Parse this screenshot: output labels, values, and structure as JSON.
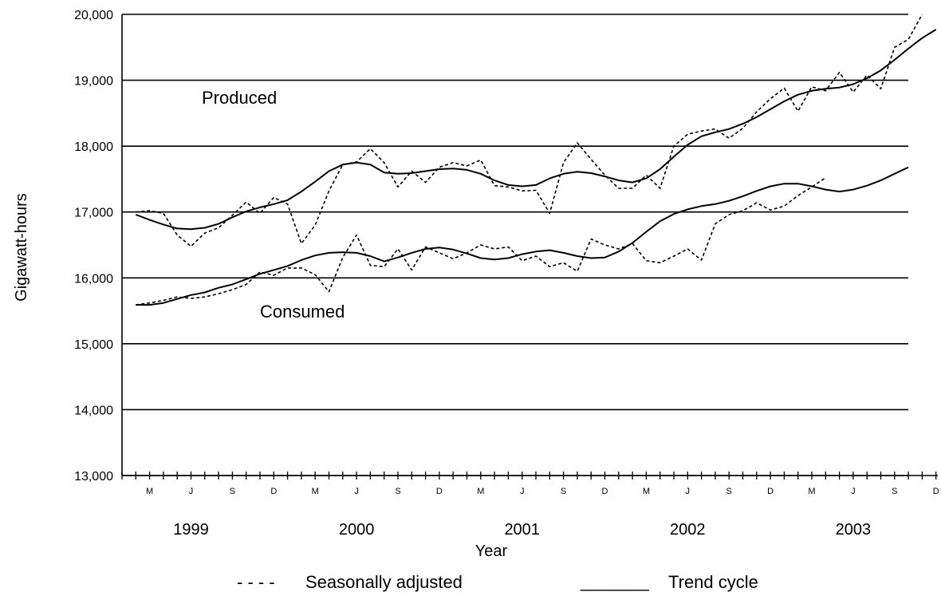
{
  "chart_data": {
    "type": "line",
    "xlabel": "Year",
    "ylabel": "Gigawatt-hours",
    "ylim": [
      13000,
      20000
    ],
    "yticks": [
      "13,000",
      "14,000",
      "15,000",
      "16,000",
      "17,000",
      "18,000",
      "19,000",
      "20,000"
    ],
    "grid": "horizontal",
    "x_month_ticks": [
      "M",
      "J",
      "S",
      "D",
      "M",
      "J",
      "S",
      "D",
      "M",
      "J",
      "S",
      "D",
      "M",
      "J",
      "S",
      "D",
      "M",
      "J",
      "S",
      "D"
    ],
    "x_year_labels": [
      "1999",
      "2000",
      "2001",
      "2002",
      "2003"
    ],
    "annotations": {
      "produced": "Produced",
      "consumed": "Consumed"
    },
    "legend": {
      "placement": "bottom",
      "dashed_marker": "- - - -",
      "dashed_label": "Seasonally adjusted",
      "solid_marker": "_______",
      "solid_label": "Trend cycle"
    },
    "series": [
      {
        "name": "Produced — Seasonally adjusted",
        "style": "dashed",
        "x_start": "1999-02",
        "values": [
          17000,
          17020,
          16980,
          16650,
          16480,
          16680,
          16760,
          16950,
          17150,
          16980,
          17220,
          17120,
          16520,
          16800,
          17320,
          17720,
          17760,
          17960,
          17750,
          17380,
          17620,
          17450,
          17680,
          17750,
          17700,
          17790,
          17400,
          17380,
          17320,
          17330,
          16980,
          17750,
          18050,
          17800,
          17560,
          17360,
          17360,
          17560,
          17360,
          18000,
          18180,
          18230,
          18260,
          18120,
          18270,
          18520,
          18720,
          18880,
          18530,
          18900,
          18840,
          19120,
          18820,
          19080,
          18870,
          19500,
          19620,
          20000
        ]
      },
      {
        "name": "Produced — Trend cycle",
        "style": "solid",
        "x_start": "1999-02",
        "values": [
          16960,
          16880,
          16810,
          16750,
          16740,
          16760,
          16820,
          16920,
          17010,
          17070,
          17120,
          17180,
          17310,
          17460,
          17620,
          17720,
          17750,
          17720,
          17600,
          17580,
          17590,
          17620,
          17650,
          17660,
          17640,
          17580,
          17480,
          17410,
          17390,
          17410,
          17510,
          17580,
          17610,
          17590,
          17540,
          17480,
          17450,
          17510,
          17650,
          17840,
          18020,
          18150,
          18210,
          18260,
          18340,
          18440,
          18560,
          18680,
          18780,
          18840,
          18870,
          18890,
          18940,
          19030,
          19150,
          19310,
          19480,
          19640,
          19770
        ]
      },
      {
        "name": "Consumed — Seasonally adjusted",
        "style": "dashed",
        "x_start": "1999-02",
        "values": [
          15590,
          15620,
          15660,
          15710,
          15690,
          15710,
          15760,
          15820,
          15900,
          16090,
          16040,
          16150,
          16150,
          16050,
          15790,
          16310,
          16650,
          16190,
          16170,
          16440,
          16120,
          16470,
          16380,
          16290,
          16380,
          16500,
          16440,
          16470,
          16260,
          16330,
          16170,
          16230,
          16100,
          16590,
          16500,
          16440,
          16520,
          16260,
          16230,
          16330,
          16440,
          16270,
          16820,
          16960,
          17020,
          17140,
          17030,
          17090,
          17250,
          17380,
          17520
        ]
      },
      {
        "name": "Consumed — Trend cycle",
        "style": "solid",
        "x_start": "1999-02",
        "values": [
          15590,
          15590,
          15620,
          15680,
          15740,
          15780,
          15850,
          15900,
          15980,
          16060,
          16120,
          16180,
          16270,
          16340,
          16380,
          16390,
          16380,
          16330,
          16250,
          16310,
          16380,
          16440,
          16460,
          16430,
          16370,
          16300,
          16280,
          16300,
          16360,
          16400,
          16420,
          16380,
          16330,
          16300,
          16310,
          16400,
          16530,
          16700,
          16860,
          16970,
          17040,
          17090,
          17120,
          17170,
          17240,
          17320,
          17390,
          17430,
          17430,
          17390,
          17340,
          17310,
          17340,
          17400,
          17480,
          17580,
          17680
        ]
      }
    ]
  }
}
